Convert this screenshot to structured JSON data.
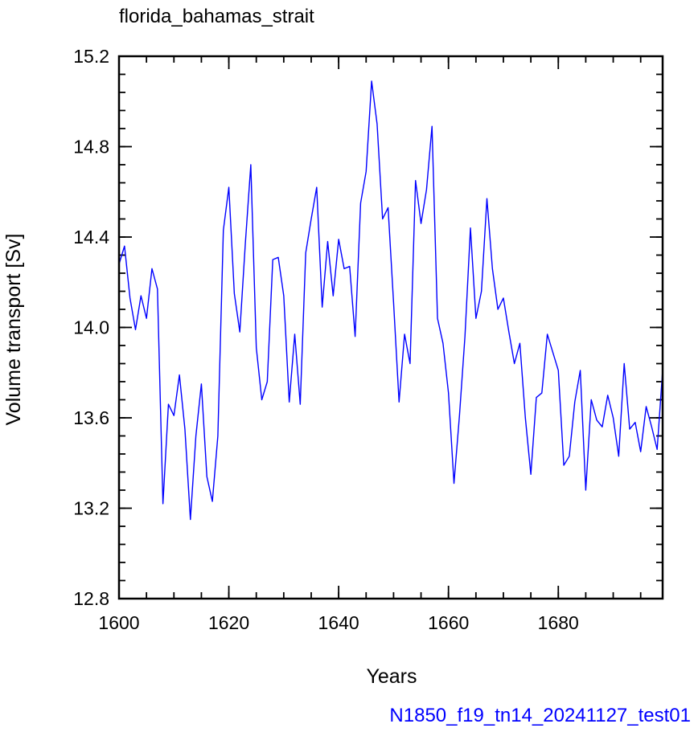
{
  "chart_data": {
    "type": "line",
    "title": "florida_bahamas_strait",
    "xlabel": "Years",
    "ylabel": "Volume transport [Sv]",
    "xlim": [
      1600,
      1699
    ],
    "ylim": [
      12.8,
      15.2
    ],
    "x_ticks": [
      1600,
      1620,
      1640,
      1660,
      1680
    ],
    "x_tick_labels": [
      "1600",
      "1620",
      "1640",
      "1660",
      "1680"
    ],
    "y_ticks": [
      12.8,
      13.2,
      13.6,
      14.0,
      14.4,
      14.8,
      15.2
    ],
    "y_tick_labels": [
      "12.8",
      "13.2",
      "13.6",
      "14.0",
      "14.4",
      "14.8",
      "15.2"
    ],
    "line_color": "#0000ff",
    "series": [
      {
        "x": [
          1600,
          1601,
          1602,
          1603,
          1604,
          1605,
          1606,
          1607,
          1608,
          1609,
          1610,
          1611,
          1612,
          1613,
          1614,
          1615,
          1616,
          1617,
          1618,
          1619,
          1620,
          1621,
          1622,
          1623,
          1624,
          1625,
          1626,
          1627,
          1628,
          1629,
          1630,
          1631,
          1632,
          1633,
          1634,
          1635,
          1636,
          1637,
          1638,
          1639,
          1640,
          1641,
          1642,
          1643,
          1644,
          1645,
          1646,
          1647,
          1648,
          1649,
          1650,
          1651,
          1652,
          1653,
          1654,
          1655,
          1656,
          1657,
          1658,
          1659,
          1660,
          1661,
          1662,
          1663,
          1664,
          1665,
          1666,
          1667,
          1668,
          1669,
          1670,
          1671,
          1672,
          1673,
          1674,
          1675,
          1676,
          1677,
          1678,
          1679,
          1680,
          1681,
          1682,
          1683,
          1684,
          1685,
          1686,
          1687,
          1688,
          1689,
          1690,
          1691,
          1692,
          1693,
          1694,
          1695,
          1696,
          1697,
          1698,
          1699
        ],
        "values": [
          14.28,
          14.36,
          14.13,
          13.99,
          14.14,
          14.04,
          14.26,
          14.17,
          13.22,
          13.66,
          13.61,
          13.79,
          13.55,
          13.15,
          13.52,
          13.75,
          13.34,
          13.23,
          13.52,
          14.43,
          14.62,
          14.15,
          13.98,
          14.37,
          14.72,
          13.91,
          13.68,
          13.76,
          14.3,
          14.31,
          14.14,
          13.67,
          13.97,
          13.66,
          14.33,
          14.48,
          14.62,
          14.09,
          14.38,
          14.14,
          14.39,
          14.26,
          14.27,
          13.96,
          14.55,
          14.69,
          15.09,
          14.9,
          14.48,
          14.53,
          14.11,
          13.67,
          13.97,
          13.84,
          14.65,
          14.46,
          14.61,
          14.89,
          14.04,
          13.93,
          13.71,
          13.31,
          13.61,
          13.96,
          14.44,
          14.04,
          14.16,
          14.57,
          14.26,
          14.08,
          14.13,
          13.98,
          13.84,
          13.93,
          13.6,
          13.35,
          13.69,
          13.71,
          13.97,
          13.89,
          13.81,
          13.39,
          13.43,
          13.67,
          13.81,
          13.28,
          13.68,
          13.59,
          13.56,
          13.7,
          13.6,
          13.43,
          13.84,
          13.55,
          13.58,
          13.45,
          13.65,
          13.56,
          13.46,
          13.81
        ]
      }
    ]
  },
  "caption": {
    "text": "N1850_f19_tn14_20241127_test01",
    "color": "#0000ff"
  }
}
